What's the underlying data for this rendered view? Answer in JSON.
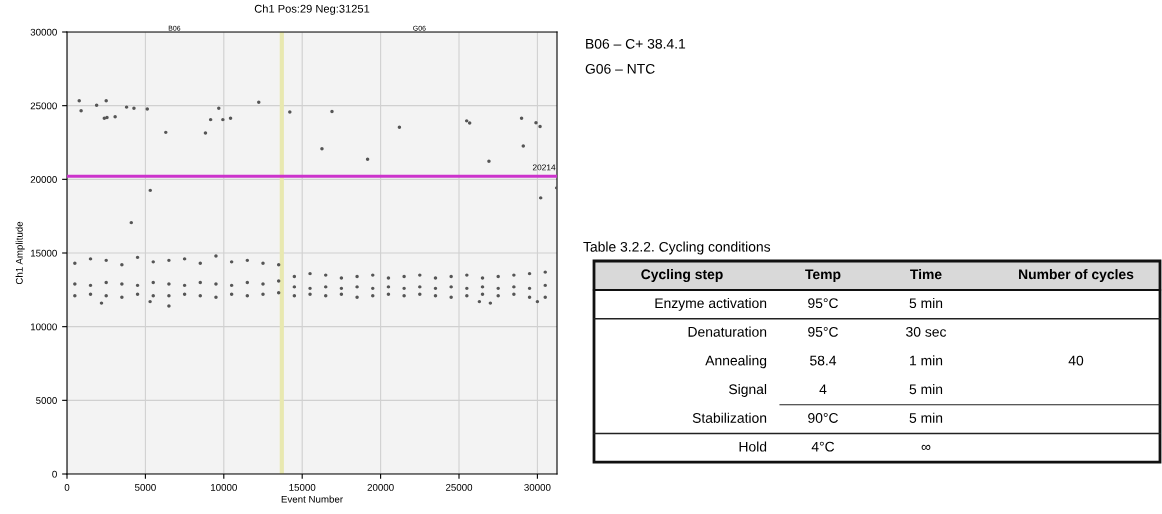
{
  "chart_data": [
    {
      "type": "scatter",
      "title": "Ch1 Pos:29 Neg:31251",
      "xlabel": "Event Number",
      "ylabel": "Ch1 Amplitude",
      "xlim": [
        0,
        31250
      ],
      "xticks": [
        0,
        5000,
        10000,
        15000,
        20000,
        25000,
        30000
      ],
      "ylim": [
        0,
        30000
      ],
      "yticks": [
        0,
        5000,
        10000,
        15000,
        20000,
        25000,
        30000
      ],
      "bands": [
        {
          "axis": "x",
          "from": 0,
          "to": 13700,
          "label": "B06",
          "color": "#f3f3f3"
        },
        {
          "axis": "x",
          "from": 13700,
          "to": 31250,
          "label": "G06",
          "color": "#f3f3f3"
        }
      ],
      "grid": true,
      "marker": "circle",
      "ref_lines": [
        {
          "axis": "y",
          "value": 20214,
          "label": "20214",
          "color": "#cc33cc"
        },
        {
          "axis": "x",
          "value": 13700,
          "label": null,
          "color": "#e8e8b0"
        }
      ],
      "series": [
        {
          "color": "#555555",
          "x": [
            780,
            900,
            1890,
            2380,
            2550,
            2500,
            3070,
            3800,
            4100,
            4270,
            5120,
            5310,
            6300,
            8830,
            9160,
            9680,
            9940,
            10430,
            12230,
            14210,
            16260,
            16900,
            19170,
            21200,
            25490,
            25680,
            26910,
            28990,
            29100,
            29910,
            30170,
            30210,
            31230,
            2200,
            5300,
            6500,
            26300,
            27000,
            30000,
            500,
            500,
            500,
            1500,
            1500,
            1500,
            2500,
            2500,
            2500,
            3500,
            3500,
            3500,
            4500,
            4500,
            4500,
            5500,
            5500,
            5500,
            6500,
            6500,
            6500,
            7500,
            7500,
            7500,
            8500,
            8500,
            8500,
            9500,
            9500,
            9500,
            10500,
            10500,
            10500,
            11500,
            11500,
            11500,
            12500,
            12500,
            12500,
            13500,
            13500,
            13500,
            14500,
            14500,
            14500,
            15500,
            15500,
            15500,
            16500,
            16500,
            16500,
            17500,
            17500,
            17500,
            18500,
            18500,
            18500,
            19500,
            19500,
            19500,
            20500,
            20500,
            20500,
            21500,
            21500,
            21500,
            22500,
            22500,
            22500,
            23500,
            23500,
            23500,
            24500,
            24500,
            24500,
            25500,
            25500,
            25500,
            26500,
            26500,
            26500,
            27500,
            27500,
            27500,
            28500,
            28500,
            28500,
            29500,
            29500,
            29500,
            30500,
            30500,
            30500
          ],
          "values": [
            25330,
            24650,
            25030,
            24150,
            24200,
            25330,
            24250,
            24900,
            17060,
            24820,
            24770,
            19250,
            23190,
            23140,
            24050,
            24820,
            24050,
            24150,
            25230,
            24570,
            22080,
            24600,
            21360,
            23540,
            23970,
            23820,
            21230,
            24150,
            22260,
            23840,
            23590,
            18740,
            19420,
            11600,
            11700,
            11400,
            11700,
            11600,
            11700,
            14300,
            12900,
            12100,
            14600,
            12800,
            12200,
            14500,
            13000,
            12100,
            14200,
            12900,
            12000,
            14700,
            12800,
            12200,
            14400,
            13000,
            12100,
            14500,
            12900,
            12100,
            14600,
            12800,
            12200,
            14300,
            13000,
            12100,
            14800,
            12900,
            12000,
            14400,
            12800,
            12200,
            14500,
            13000,
            12100,
            14300,
            12900,
            12200,
            14200,
            13100,
            12300,
            13400,
            12700,
            12100,
            13600,
            12600,
            12200,
            13500,
            12700,
            12100,
            13300,
            12600,
            12200,
            13400,
            12700,
            12000,
            13500,
            12600,
            12100,
            13300,
            12700,
            12200,
            13400,
            12600,
            12100,
            13500,
            12700,
            12200,
            13300,
            12600,
            12100,
            13400,
            12700,
            12000,
            13500,
            12600,
            12100,
            13300,
            12700,
            12200,
            13400,
            12600,
            12100,
            13500,
            12700,
            12200,
            13600,
            12600,
            12000,
            13700,
            12800,
            12000
          ]
        }
      ]
    },
    {
      "type": "other",
      "annotations": [
        "B06 – C+ 38.4.1",
        "G06 – NTC"
      ],
      "title": "Table 3.2.2. Cycling conditions",
      "categories": [
        "Cycling step",
        "Temp",
        "Time",
        "Number of cycles"
      ],
      "cell_labels": [
        [
          "Enzyme activation",
          "95°C",
          "5 min",
          null
        ],
        [
          "Denaturation",
          "95°C",
          "30 sec",
          "40"
        ],
        [
          "Annealing",
          "58.4",
          "1 min",
          null
        ],
        [
          "Signal",
          "4",
          "5 min",
          null
        ],
        [
          "Stabilization",
          "90°C",
          "5 min",
          null
        ],
        [
          "Hold",
          "4°C",
          "∞",
          null
        ]
      ]
    }
  ]
}
